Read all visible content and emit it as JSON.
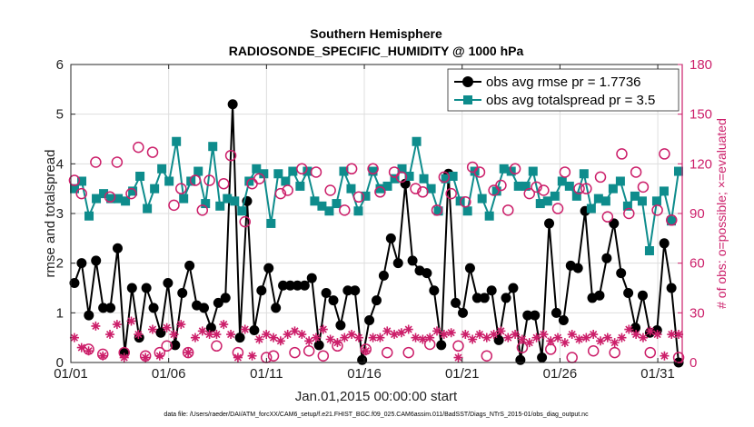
{
  "chart_data": {
    "type": "line",
    "title": "Southern Hemisphere",
    "subtitle": "RADIOSONDE_SPECIFIC_HUMIDITY @ 1000 hPa",
    "xlabel": "Jan.01,2015 00:00:00 start",
    "ylabel": "rmse and totalspread",
    "y2label": "# of obs: o=possible; ×=evaluated",
    "footnote": "data file: /Users/raeder/DAI/ATM_forcXX/CAM6_setup/f.e21.FHIST_BGC.f09_025.CAM6assim.011/BadSST/Diags_NTrS_2015-01/obs_diag_output.nc",
    "xlim": [
      1,
      32.25
    ],
    "ylim": [
      0,
      6
    ],
    "y2lim": [
      0,
      180
    ],
    "x_ticks": [
      1,
      6,
      11,
      16,
      21,
      26,
      31
    ],
    "x_tick_labels": [
      "01/01",
      "01/06",
      "01/11",
      "01/16",
      "01/21",
      "01/26",
      "01/31"
    ],
    "y_ticks": [
      0,
      1,
      2,
      3,
      4,
      5,
      6
    ],
    "y2_ticks": [
      0,
      30,
      60,
      90,
      120,
      150,
      180
    ],
    "legend_position": "top-right",
    "series": [
      {
        "name": "obs avg rmse pr = 1.7736",
        "axis": "left",
        "color": "#000000",
        "marker": "circle",
        "values": [
          1.6,
          2.0,
          0.95,
          2.05,
          1.1,
          1.1,
          2.3,
          0.2,
          1.5,
          0.5,
          1.5,
          1.1,
          0.6,
          1.6,
          0.35,
          1.4,
          1.95,
          1.15,
          1.1,
          0.7,
          1.2,
          1.3,
          5.2,
          0.5,
          3.25,
          0.65,
          1.45,
          1.9,
          1.1,
          1.55,
          1.55,
          1.55,
          1.55,
          1.7,
          0.35,
          1.4,
          1.25,
          0.75,
          1.45,
          1.45,
          0.05,
          0.85,
          1.25,
          1.75,
          2.5,
          2.0,
          3.6,
          2.05,
          1.85,
          1.8,
          1.45,
          0.35,
          3.8,
          1.2,
          1.0,
          1.9,
          1.3,
          1.3,
          1.45,
          0.45,
          1.3,
          1.5,
          0.05,
          0.95,
          0.95,
          0.1,
          2.8,
          1.0,
          0.85,
          1.95,
          1.9,
          3.05,
          1.3,
          1.35,
          2.1,
          2.8,
          1.8,
          1.4,
          0.7,
          1.35,
          0.6,
          0.65,
          2.4,
          1.5,
          0.0
        ]
      },
      {
        "name": "obs avg totalspread pr = 3.5",
        "axis": "left",
        "color": "#0e8c8c",
        "marker": "square",
        "values": [
          3.5,
          3.65,
          2.95,
          3.3,
          3.4,
          3.3,
          3.3,
          3.25,
          3.45,
          3.75,
          3.1,
          3.5,
          3.9,
          3.65,
          4.45,
          3.3,
          3.65,
          3.85,
          3.2,
          4.35,
          3.15,
          3.3,
          3.25,
          3.05,
          3.65,
          3.9,
          3.8,
          2.8,
          3.8,
          3.65,
          3.85,
          3.55,
          3.85,
          3.25,
          3.15,
          3.05,
          3.2,
          3.85,
          3.5,
          3.05,
          3.35,
          3.85,
          3.5,
          3.55,
          3.7,
          3.9,
          3.75,
          4.45,
          3.7,
          3.5,
          3.05,
          3.7,
          3.75,
          3.25,
          3.05,
          3.85,
          3.3,
          2.95,
          3.45,
          3.9,
          3.85,
          3.55,
          3.55,
          3.85,
          3.2,
          3.25,
          3.35,
          3.65,
          3.55,
          3.35,
          3.8,
          3.1,
          3.3,
          3.25,
          3.5,
          3.65,
          3.15,
          3.35,
          3.25,
          2.25,
          3.25,
          3.45,
          2.85,
          3.85
        ]
      },
      {
        "name": "# obs possible",
        "axis": "right",
        "color": "#cc1f6a",
        "marker": "open-circle",
        "values": [
          110,
          102,
          8,
          121,
          5,
          100,
          121,
          6,
          102,
          130,
          4,
          127,
          6,
          10,
          95,
          105,
          6,
          110,
          92,
          110,
          10,
          108,
          125,
          6,
          85,
          108,
          111,
          3,
          4,
          102,
          104,
          6,
          117,
          7,
          115,
          4,
          104,
          10,
          92,
          117,
          100,
          8,
          117,
          103,
          6,
          115,
          112,
          6,
          105,
          103,
          11,
          92,
          112,
          102,
          10,
          97,
          118,
          115,
          4,
          104,
          107,
          92,
          117,
          9,
          102,
          106,
          104,
          8,
          93,
          115,
          3,
          105,
          105,
          7,
          112,
          88,
          6,
          126,
          90,
          115,
          106,
          6,
          92,
          126,
          86,
          3
        ]
      },
      {
        "name": "# obs evaluated",
        "axis": "right",
        "color": "#cc1f6a",
        "marker": "asterisk",
        "values": [
          15,
          9,
          7,
          22,
          4,
          17,
          23,
          3,
          25,
          17,
          3,
          20,
          4,
          21,
          17,
          23,
          6,
          15,
          19,
          17,
          17,
          23,
          17,
          3,
          20,
          4,
          14,
          17,
          15,
          13,
          17,
          19,
          17,
          13,
          15,
          20,
          14,
          12,
          15,
          17,
          15,
          7,
          15,
          15,
          19,
          17,
          18,
          20,
          15,
          14,
          15,
          19,
          17,
          18,
          3,
          17,
          14,
          17,
          15,
          17,
          19,
          15,
          17,
          14,
          12,
          15,
          17,
          13,
          15,
          12,
          17,
          14,
          15,
          17,
          13,
          15,
          12,
          15,
          20,
          17,
          15,
          19,
          17,
          4,
          17,
          17
        ]
      }
    ]
  }
}
